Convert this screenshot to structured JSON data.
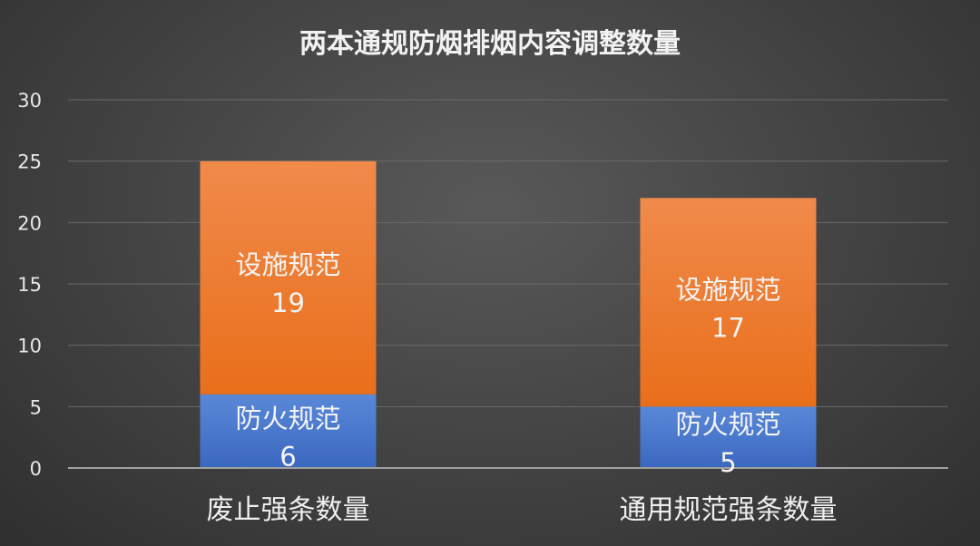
{
  "chart_data": {
    "type": "bar",
    "stacked": true,
    "title": "两本通规防烟排烟内容调整数量",
    "categories": [
      "废止强条数量",
      "通用规范强条数量"
    ],
    "series": [
      {
        "name": "防火规范",
        "values": [
          6,
          5
        ],
        "color": "#4472c4"
      },
      {
        "name": "设施规范",
        "values": [
          19,
          17
        ],
        "color": "#ed7d31"
      }
    ],
    "ylim": [
      0,
      30
    ],
    "yticks": [
      0,
      5,
      10,
      15,
      20,
      25,
      30
    ],
    "grid": true,
    "legend": "none"
  }
}
